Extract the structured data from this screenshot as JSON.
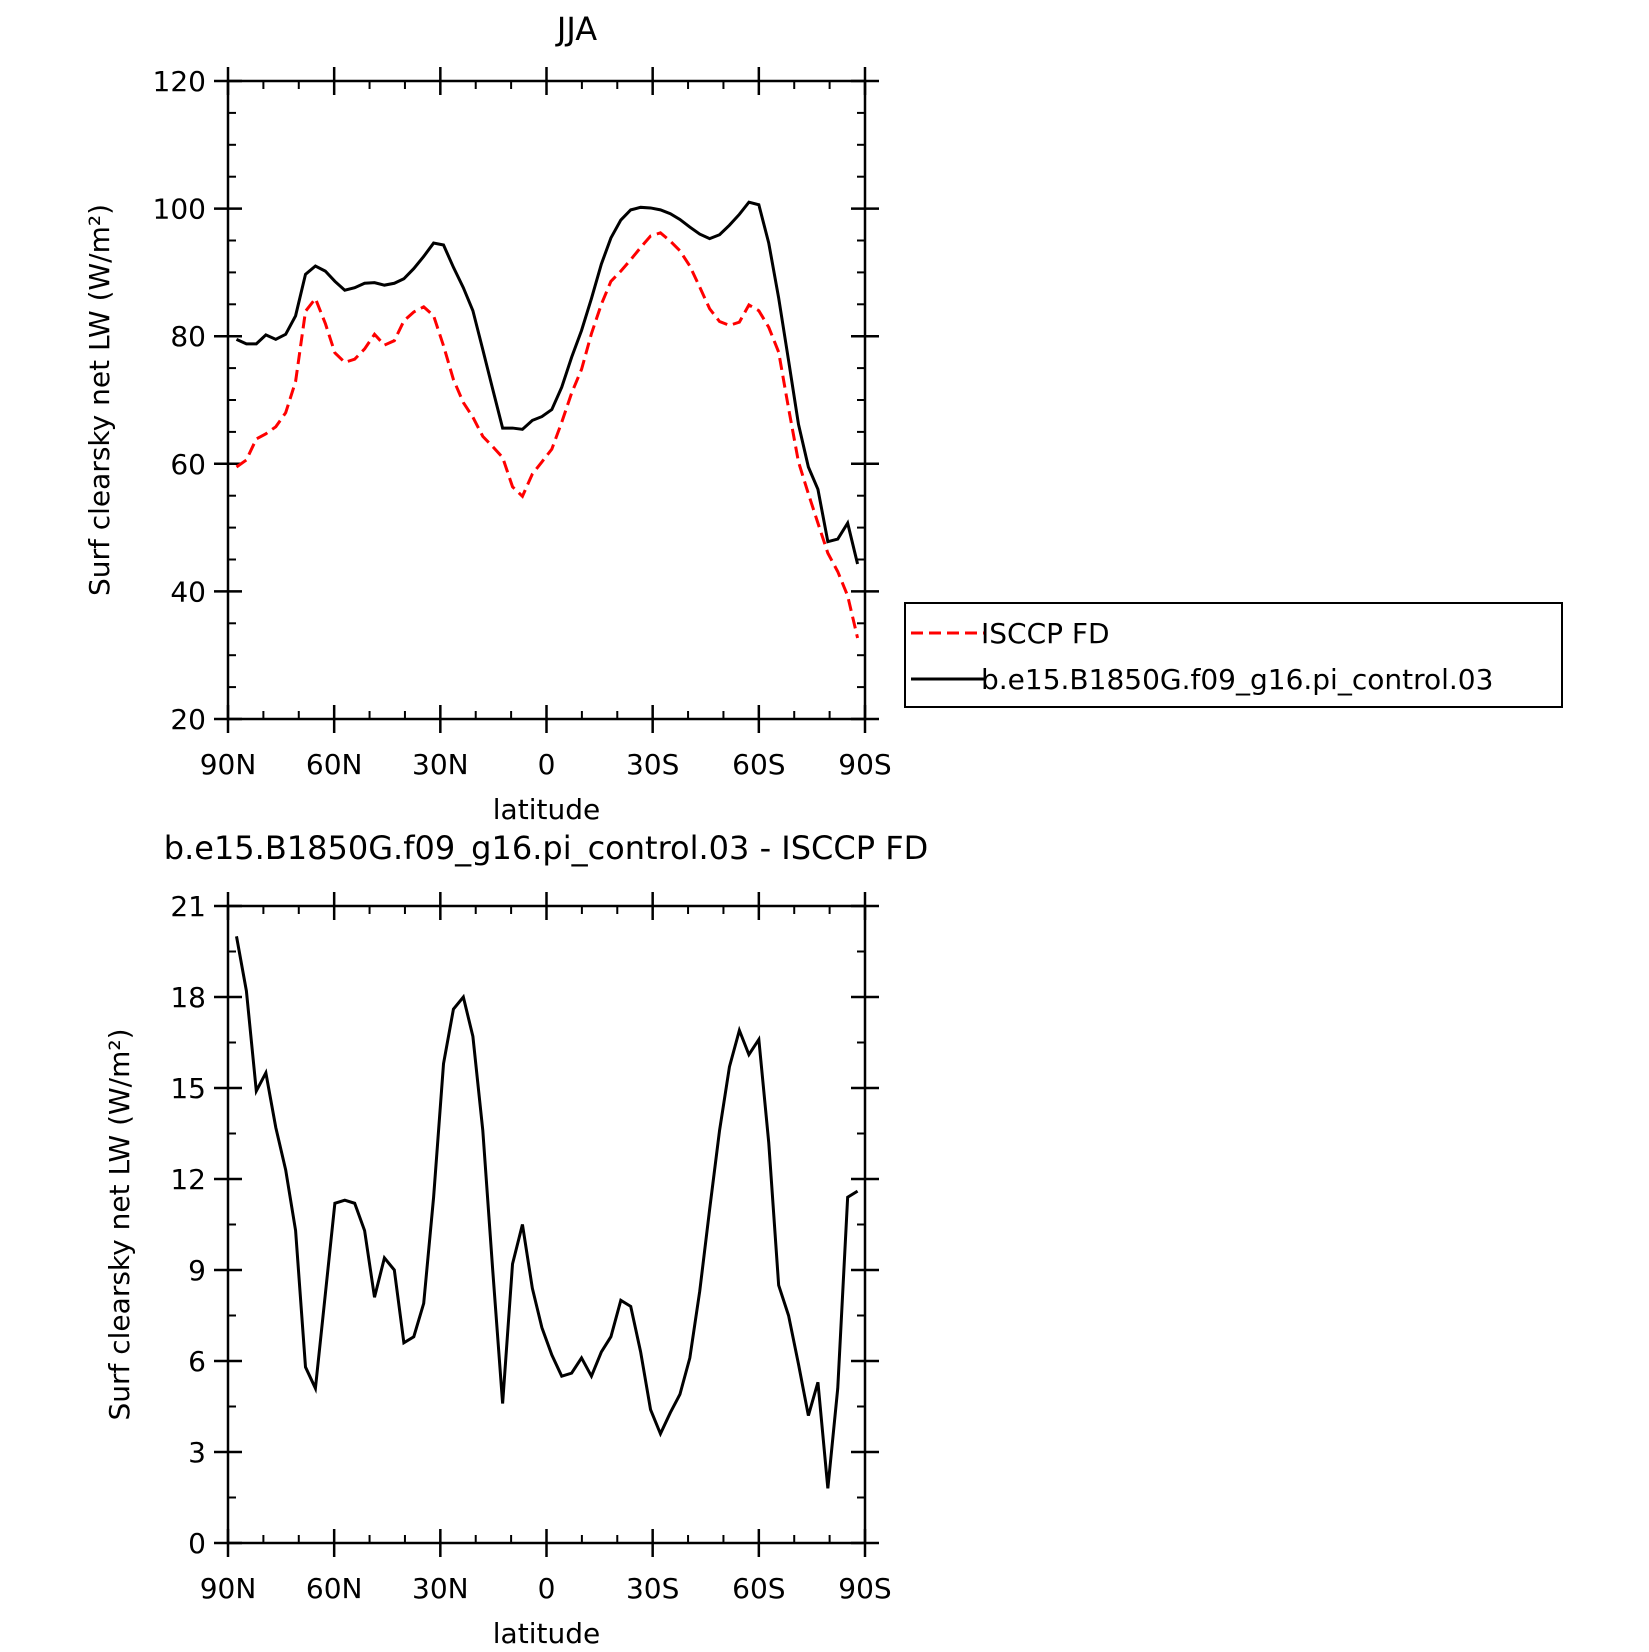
{
  "chart_data": [
    {
      "type": "line",
      "title": "JJA",
      "xlabel": "latitude",
      "ylabel": "Surf clearsky net LW (W/m²)",
      "x": [
        87.6,
        84.8,
        82.0,
        79.3,
        76.5,
        73.7,
        70.9,
        68.1,
        65.3,
        62.5,
        59.8,
        57.0,
        54.2,
        51.4,
        48.6,
        45.8,
        43.0,
        40.3,
        37.5,
        34.7,
        31.9,
        29.1,
        26.3,
        23.5,
        20.8,
        18.0,
        15.2,
        12.4,
        9.6,
        6.8,
        4.0,
        1.3,
        -1.5,
        -4.3,
        -7.1,
        -9.9,
        -12.7,
        -15.5,
        -18.2,
        -21.0,
        -23.8,
        -26.6,
        -29.4,
        -32.2,
        -35.0,
        -37.7,
        -40.5,
        -43.3,
        -46.1,
        -48.9,
        -51.7,
        -54.5,
        -57.2,
        -60.0,
        -62.8,
        -65.6,
        -68.4,
        -71.2,
        -74.0,
        -76.7,
        -79.5,
        -82.3,
        -85.1,
        -87.9
      ],
      "series": [
        {
          "name": "ISCCP FD",
          "color": "#ff0000",
          "line_style": "dashed",
          "values": [
            59.5,
            60.6,
            63.9,
            64.7,
            65.8,
            68.0,
            72.9,
            83.9,
            85.9,
            82.0,
            77.4,
            75.9,
            76.4,
            78.0,
            80.3,
            78.6,
            79.3,
            82.4,
            83.8,
            84.6,
            83.2,
            78.5,
            73.2,
            69.6,
            67.3,
            64.3,
            62.7,
            61.0,
            56.4,
            54.9,
            58.4,
            60.3,
            62.3,
            66.5,
            71.1,
            74.8,
            80.4,
            85.0,
            88.6,
            90.2,
            92.0,
            93.9,
            95.7,
            96.2,
            94.9,
            93.4,
            91.0,
            87.7,
            84.3,
            82.3,
            81.7,
            82.2,
            84.9,
            84.0,
            81.4,
            77.5,
            68.7,
            60.3,
            55.3,
            50.7,
            46.0,
            43.1,
            39.3,
            32.7
          ]
        },
        {
          "name": "b.e15.B1850G.f09_g16.pi_control.03",
          "color": "#000000",
          "line_style": "solid",
          "values": [
            79.5,
            78.8,
            78.8,
            80.2,
            79.5,
            80.3,
            83.2,
            89.7,
            91.0,
            90.2,
            88.6,
            87.2,
            87.6,
            88.3,
            88.4,
            88.0,
            88.3,
            89.0,
            90.6,
            92.5,
            94.6,
            94.3,
            90.8,
            87.6,
            84.0,
            77.9,
            71.7,
            65.6,
            65.6,
            65.4,
            66.8,
            67.4,
            68.5,
            72.0,
            76.7,
            80.9,
            85.9,
            91.3,
            95.4,
            98.2,
            99.8,
            100.2,
            100.1,
            99.8,
            99.2,
            98.3,
            97.1,
            96.0,
            95.3,
            95.9,
            97.4,
            99.1,
            101.0,
            100.6,
            94.6,
            86.0,
            76.2,
            66.2,
            59.5,
            56.0,
            47.8,
            48.2,
            50.7,
            44.3
          ]
        }
      ],
      "xlim": [
        90,
        -90
      ],
      "xticks": [
        {
          "value": 90,
          "label": "90N"
        },
        {
          "value": 60,
          "label": "60N"
        },
        {
          "value": 30,
          "label": "30N"
        },
        0,
        {
          "value": -30,
          "label": "30S"
        },
        {
          "value": -60,
          "label": "60S"
        },
        {
          "value": -90,
          "label": "90S"
        }
      ],
      "ylim": [
        20,
        120
      ],
      "yticks": [
        20,
        40,
        60,
        80,
        100,
        120
      ],
      "legend": "right"
    },
    {
      "type": "line",
      "title": "b.e15.B1850G.f09_g16.pi_control.03 - ISCCP FD",
      "xlabel": "latitude",
      "ylabel": "Surf clearsky net LW (W/m²)",
      "x": [
        87.6,
        84.8,
        82.0,
        79.3,
        76.5,
        73.7,
        70.9,
        68.1,
        65.3,
        62.5,
        59.8,
        57.0,
        54.2,
        51.4,
        48.6,
        45.8,
        43.0,
        40.3,
        37.5,
        34.7,
        31.9,
        29.1,
        26.3,
        23.5,
        20.8,
        18.0,
        15.2,
        12.4,
        9.6,
        6.8,
        4.0,
        1.3,
        -1.5,
        -4.3,
        -7.1,
        -9.9,
        -12.7,
        -15.5,
        -18.2,
        -21.0,
        -23.8,
        -26.6,
        -29.4,
        -32.2,
        -35.0,
        -37.7,
        -40.5,
        -43.3,
        -46.1,
        -48.9,
        -51.7,
        -54.5,
        -57.2,
        -60.0,
        -62.8,
        -65.6,
        -68.4,
        -71.2,
        -74.0,
        -76.7,
        -79.5,
        -82.3,
        -85.1,
        -87.9
      ],
      "series": [
        {
          "color": "#000000",
          "line_style": "solid",
          "values": [
            20,
            18.2,
            14.9,
            15.5,
            13.7,
            12.3,
            10.3,
            5.8,
            5.1,
            8.2,
            11.2,
            11.3,
            11.2,
            10.3,
            8.1,
            9.4,
            9.0,
            6.6,
            6.8,
            7.9,
            11.4,
            15.8,
            17.6,
            18.0,
            16.7,
            13.6,
            9.0,
            4.6,
            9.2,
            10.5,
            8.4,
            7.1,
            6.2,
            5.5,
            5.6,
            6.1,
            5.5,
            6.3,
            6.8,
            8.0,
            7.8,
            6.3,
            4.4,
            3.6,
            4.3,
            4.9,
            6.1,
            8.3,
            11.0,
            13.6,
            15.7,
            16.9,
            16.1,
            16.6,
            13.2,
            8.5,
            7.5,
            5.9,
            4.2,
            5.3,
            1.8,
            5.1,
            11.4,
            11.6
          ]
        }
      ],
      "xlim": [
        90,
        -90
      ],
      "xticks": [
        {
          "value": 90,
          "label": "90N"
        },
        {
          "value": 60,
          "label": "60N"
        },
        {
          "value": 30,
          "label": "30N"
        },
        0,
        {
          "value": -30,
          "label": "30S"
        },
        {
          "value": -60,
          "label": "60S"
        },
        {
          "value": -90,
          "label": "90S"
        }
      ],
      "ylim": [
        0,
        21
      ],
      "yticks": [
        0,
        3,
        6,
        9,
        12,
        15,
        18,
        21
      ]
    }
  ]
}
